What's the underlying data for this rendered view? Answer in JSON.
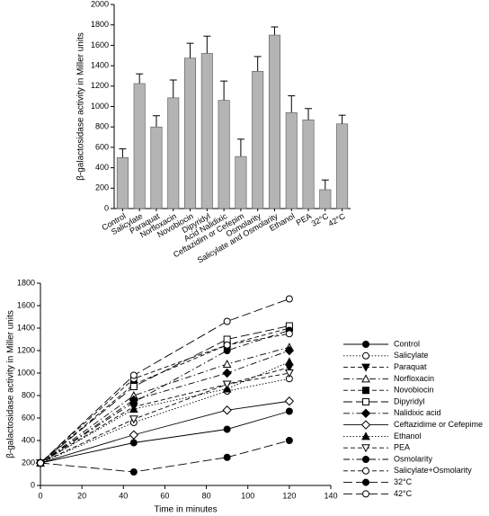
{
  "chart_data": [
    {
      "type": "bar",
      "ylabel": "β-galactosidase activity in Miller units",
      "categories": [
        "Control",
        "Salicylate",
        "Paraquat",
        "Norfloxacin",
        "Novobiocin",
        "Dipyridyl",
        "Acid Nalidixic",
        "Ceftazidim or Cefepim",
        "Osmolarity",
        "Salicylate and Osmolarity",
        "Ethanol",
        "PEA",
        "32°C",
        "42°C"
      ],
      "values": [
        500,
        1225,
        800,
        1085,
        1475,
        1520,
        1060,
        510,
        1345,
        1700,
        940,
        870,
        185,
        830
      ],
      "errors": [
        85,
        95,
        110,
        175,
        145,
        170,
        190,
        170,
        145,
        80,
        165,
        110,
        95,
        85
      ],
      "color": "#b4b4b4",
      "ylim": [
        0,
        2000
      ],
      "yticks": [
        0,
        200,
        400,
        600,
        800,
        1000,
        1200,
        1400,
        1600,
        1800,
        2000
      ]
    },
    {
      "type": "line",
      "ylabel": "β-galactosidase activity in Miller units",
      "xlabel": "Time in minutes",
      "x": [
        0,
        45,
        90,
        120
      ],
      "xlim": [
        0,
        140
      ],
      "xticks": [
        0,
        20,
        40,
        60,
        80,
        100,
        120,
        140
      ],
      "ylim": [
        0,
        1800
      ],
      "yticks": [
        0,
        200,
        400,
        600,
        800,
        1000,
        1200,
        1400,
        1600,
        1800
      ],
      "legend": "right",
      "series": [
        {
          "name": "Control",
          "color": "#000000",
          "marker": "circle",
          "filled": true,
          "line": "solid",
          "values": [
            200,
            380,
            500,
            660
          ]
        },
        {
          "name": "Salicylate",
          "color": "#000000",
          "marker": "circle",
          "filled": false,
          "line": "dotted",
          "values": [
            200,
            560,
            840,
            950
          ]
        },
        {
          "name": "Paraquat",
          "color": "#000000",
          "marker": "triangle-down",
          "filled": true,
          "line": "dashed",
          "values": [
            200,
            700,
            900,
            1050
          ]
        },
        {
          "name": "Norfloxacin",
          "color": "#000000",
          "marker": "triangle-up",
          "filled": false,
          "line": "dashdot",
          "values": [
            200,
            800,
            1080,
            1230
          ]
        },
        {
          "name": "Novobiocin",
          "color": "#000000",
          "marker": "square",
          "filled": true,
          "line": "dashed",
          "values": [
            200,
            900,
            1250,
            1400
          ]
        },
        {
          "name": "Dipyridyl",
          "color": "#000000",
          "marker": "square",
          "filled": false,
          "line": "longdash",
          "values": [
            200,
            880,
            1300,
            1420
          ]
        },
        {
          "name": "Nalidixic acid",
          "color": "#000000",
          "marker": "diamond",
          "filled": true,
          "line": "dashdot",
          "values": [
            200,
            760,
            1000,
            1200
          ]
        },
        {
          "name": "Ceftazidime or Cefepime",
          "color": "#000000",
          "marker": "diamond",
          "filled": false,
          "line": "solid",
          "values": [
            200,
            450,
            670,
            750
          ]
        },
        {
          "name": "Ethanol",
          "color": "#000000",
          "marker": "triangle-up",
          "filled": true,
          "line": "dotted",
          "values": [
            200,
            680,
            860,
            1100
          ]
        },
        {
          "name": "PEA",
          "color": "#000000",
          "marker": "triangle-down",
          "filled": false,
          "line": "dashed",
          "values": [
            200,
            590,
            900,
            1000
          ]
        },
        {
          "name": "Osmolarity",
          "color": "#000000",
          "marker": "circle",
          "filled": true,
          "line": "dashdot",
          "values": [
            200,
            740,
            1200,
            1380
          ]
        },
        {
          "name": "Salicylate+Osmolarity",
          "color": "#000000",
          "marker": "circle",
          "filled": false,
          "line": "dashed",
          "values": [
            200,
            950,
            1250,
            1350
          ]
        },
        {
          "name": "32°C",
          "color": "#000000",
          "marker": "circle",
          "filled": true,
          "line": "longdash",
          "values": [
            200,
            120,
            250,
            400
          ]
        },
        {
          "name": "42°C",
          "color": "#000000",
          "marker": "circle",
          "filled": false,
          "line": "longdash",
          "values": [
            200,
            980,
            1460,
            1660
          ]
        }
      ]
    }
  ]
}
